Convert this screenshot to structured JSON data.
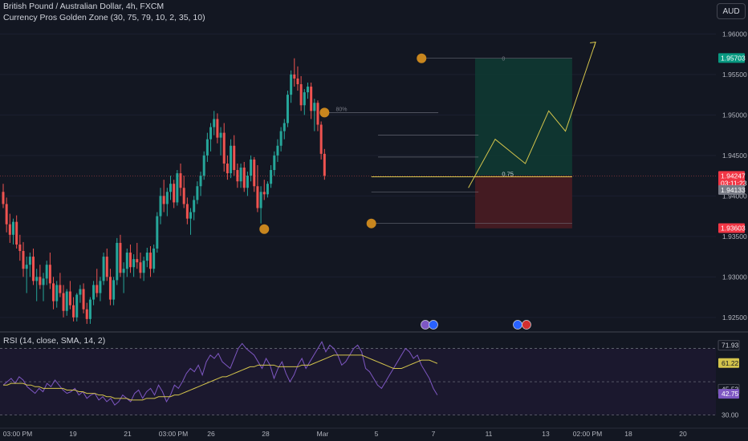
{
  "header": {
    "symbol_title": "British Pound / Australian Dollar, 4h, FXCM",
    "indicator_title": "Currency Pros Golden Zone (30, 75, 79, 10, 2, 35, 10)",
    "currency_button": "AUD"
  },
  "rsi_panel": {
    "title": "RSI (14, close, SMA, 14, 2)"
  },
  "colors": {
    "background": "#131722",
    "up_candle": "#26a69a",
    "down_candle": "#ef5350",
    "swing_marker": "#c8861e",
    "projection": "#d4c44c",
    "rsi_line": "#7e57c2",
    "rsi_sma": "#d4c44c",
    "profit_zone": "#0f3b32",
    "loss_zone": "#4a1c22"
  },
  "chart_data": [
    {
      "type": "candlestick",
      "name": "price",
      "y_axis_ticks": [
        "1.96000",
        "1.95500",
        "1.95000",
        "1.94500",
        "1.94000",
        "1.93500",
        "1.93000",
        "1.92500"
      ],
      "ylim": [
        1.9232,
        1.9642
      ],
      "x_axis_ticks": [
        "03:00 PM",
        "19",
        "21",
        "03:00 PM",
        "26",
        "28",
        "Mar",
        "5",
        "7",
        "11",
        "13",
        "02:00 PM",
        "18",
        "20"
      ],
      "price_tags": [
        {
          "label": "1.95703",
          "value": 1.95703,
          "color": "#089981"
        },
        {
          "label": "1.94247",
          "value": 1.94247,
          "color": "#f23645"
        },
        {
          "label": "03:11:23",
          "value": null,
          "color": "#f23645"
        },
        {
          "label": "1.94133",
          "value": 1.94133,
          "color": "#787b86"
        },
        {
          "label": "1.93603",
          "value": 1.93603,
          "color": "#f23645"
        }
      ],
      "candles": [
        [
          1.9405,
          1.9415,
          1.9385,
          1.939
        ],
        [
          1.939,
          1.9398,
          1.9355,
          1.9365
        ],
        [
          1.9365,
          1.9378,
          1.9342,
          1.9352
        ],
        [
          1.9352,
          1.9372,
          1.934,
          1.9368
        ],
        [
          1.9368,
          1.9376,
          1.9335,
          1.934
        ],
        [
          1.934,
          1.9352,
          1.932,
          1.9332
        ],
        [
          1.9332,
          1.9343,
          1.93,
          1.931
        ],
        [
          1.931,
          1.9325,
          1.928,
          1.9315
        ],
        [
          1.9315,
          1.933,
          1.93,
          1.9325
        ],
        [
          1.9325,
          1.9335,
          1.929,
          1.9295
        ],
        [
          1.9295,
          1.931,
          1.927,
          1.93
        ],
        [
          1.93,
          1.9315,
          1.9285,
          1.929
        ],
        [
          1.929,
          1.9305,
          1.927,
          1.9298
        ],
        [
          1.9298,
          1.932,
          1.929,
          1.9315
        ],
        [
          1.9315,
          1.933,
          1.9285,
          1.9292
        ],
        [
          1.9292,
          1.93,
          1.926,
          1.927
        ],
        [
          1.927,
          1.9295,
          1.9262,
          1.929
        ],
        [
          1.929,
          1.9305,
          1.9275,
          1.928
        ],
        [
          1.928,
          1.929,
          1.925,
          1.9258
        ],
        [
          1.9258,
          1.9285,
          1.9252,
          1.9282
        ],
        [
          1.9282,
          1.9295,
          1.926,
          1.9265
        ],
        [
          1.9265,
          1.9275,
          1.9245,
          1.925
        ],
        [
          1.925,
          1.928,
          1.9245,
          1.9278
        ],
        [
          1.9278,
          1.929,
          1.9268,
          1.9285
        ],
        [
          1.9285,
          1.9292,
          1.9255,
          1.926
        ],
        [
          1.926,
          1.9268,
          1.9242,
          1.9248
        ],
        [
          1.9248,
          1.9275,
          1.9242,
          1.9272
        ],
        [
          1.9272,
          1.9295,
          1.9265,
          1.929
        ],
        [
          1.929,
          1.931,
          1.9275,
          1.928
        ],
        [
          1.928,
          1.93,
          1.927,
          1.9295
        ],
        [
          1.9295,
          1.933,
          1.929,
          1.9325
        ],
        [
          1.9325,
          1.9335,
          1.9295,
          1.93
        ],
        [
          1.93,
          1.931,
          1.9265,
          1.9272
        ],
        [
          1.9272,
          1.93,
          1.9265,
          1.9296
        ],
        [
          1.9296,
          1.9348,
          1.929,
          1.9342
        ],
        [
          1.9342,
          1.9352,
          1.93,
          1.9305
        ],
        [
          1.9305,
          1.9318,
          1.928,
          1.931
        ],
        [
          1.931,
          1.9335,
          1.93,
          1.933
        ],
        [
          1.933,
          1.934,
          1.9305,
          1.9312
        ],
        [
          1.9312,
          1.9328,
          1.93,
          1.9322
        ],
        [
          1.9322,
          1.9342,
          1.931,
          1.9318
        ],
        [
          1.9318,
          1.933,
          1.9298,
          1.9305
        ],
        [
          1.9305,
          1.9325,
          1.9295,
          1.932
        ],
        [
          1.932,
          1.9336,
          1.9312,
          1.933
        ],
        [
          1.933,
          1.9338,
          1.93,
          1.931
        ],
        [
          1.931,
          1.934,
          1.9305,
          1.9335
        ],
        [
          1.9335,
          1.938,
          1.933,
          1.9375
        ],
        [
          1.9375,
          1.941,
          1.9365,
          1.94
        ],
        [
          1.94,
          1.942,
          1.938,
          1.939
        ],
        [
          1.939,
          1.941,
          1.9375,
          1.9405
        ],
        [
          1.9405,
          1.9425,
          1.9395,
          1.9415
        ],
        [
          1.9415,
          1.942,
          1.9385,
          1.9392
        ],
        [
          1.9392,
          1.9432,
          1.9388,
          1.9428
        ],
        [
          1.9428,
          1.944,
          1.94,
          1.941
        ],
        [
          1.941,
          1.9425,
          1.9385,
          1.939
        ],
        [
          1.939,
          1.9398,
          1.9365,
          1.9372
        ],
        [
          1.9372,
          1.9385,
          1.9352,
          1.938
        ],
        [
          1.938,
          1.94,
          1.937,
          1.9395
        ],
        [
          1.9395,
          1.9418,
          1.939,
          1.9412
        ],
        [
          1.9412,
          1.943,
          1.94,
          1.9425
        ],
        [
          1.9425,
          1.9455,
          1.942,
          1.945
        ],
        [
          1.945,
          1.9478,
          1.9442,
          1.947
        ],
        [
          1.947,
          1.949,
          1.9455,
          1.9485
        ],
        [
          1.9485,
          1.9505,
          1.9475,
          1.9495
        ],
        [
          1.9495,
          1.9502,
          1.9465,
          1.9472
        ],
        [
          1.9472,
          1.9485,
          1.945,
          1.9478
        ],
        [
          1.9478,
          1.949,
          1.943,
          1.944
        ],
        [
          1.944,
          1.945,
          1.942,
          1.9428
        ],
        [
          1.9428,
          1.947,
          1.9422,
          1.9462
        ],
        [
          1.9462,
          1.9475,
          1.9425,
          1.9432
        ],
        [
          1.9432,
          1.944,
          1.941,
          1.9418
        ],
        [
          1.9418,
          1.944,
          1.941,
          1.9435
        ],
        [
          1.9435,
          1.9442,
          1.9405,
          1.941
        ],
        [
          1.941,
          1.943,
          1.94,
          1.9425
        ],
        [
          1.9425,
          1.945,
          1.9418,
          1.9445
        ],
        [
          1.9445,
          1.9448,
          1.9405,
          1.9412
        ],
        [
          1.9412,
          1.9438,
          1.938,
          1.9385
        ],
        [
          1.9385,
          1.9412,
          1.9366,
          1.9405
        ],
        [
          1.9405,
          1.942,
          1.9395,
          1.9402
        ],
        [
          1.9402,
          1.9418,
          1.9398,
          1.9415
        ],
        [
          1.9415,
          1.9438,
          1.941,
          1.9432
        ],
        [
          1.9432,
          1.9455,
          1.9425,
          1.945
        ],
        [
          1.945,
          1.947,
          1.9442,
          1.9462
        ],
        [
          1.9462,
          1.9485,
          1.9455,
          1.948
        ],
        [
          1.948,
          1.9495,
          1.947,
          1.949
        ],
        [
          1.949,
          1.953,
          1.9485,
          1.9525
        ],
        [
          1.9525,
          1.9555,
          1.9515,
          1.955
        ],
        [
          1.955,
          1.957,
          1.9535,
          1.9545
        ],
        [
          1.9545,
          1.956,
          1.953,
          1.9538
        ],
        [
          1.9538,
          1.9548,
          1.9505,
          1.9512
        ],
        [
          1.9512,
          1.9532,
          1.95,
          1.9528
        ],
        [
          1.9528,
          1.954,
          1.952,
          1.9535
        ],
        [
          1.9535,
          1.954,
          1.9495,
          1.9505
        ],
        [
          1.9505,
          1.952,
          1.948,
          1.9515
        ],
        [
          1.9515,
          1.9518,
          1.948,
          1.9488
        ],
        [
          1.9488,
          1.9492,
          1.9445,
          1.9452
        ],
        [
          1.9452,
          1.9458,
          1.942,
          1.9425
        ]
      ],
      "annotations": {
        "swing_points": [
          {
            "index": 78,
            "price": 1.9359
          },
          {
            "index": 96,
            "price": 1.9503
          },
          {
            "index": 110,
            "price": 1.9366
          },
          {
            "index": 125,
            "price": 1.957
          }
        ],
        "level_labels": [
          "80%",
          "0",
          "0.75"
        ],
        "position": {
          "entry": 1.9425,
          "stop": 1.936,
          "target": 1.957,
          "start_index": 141,
          "end_index": 170
        },
        "fib_level_075": 1.94236,
        "current_price_line": 1.94247,
        "projection_path": [
          {
            "index": 139,
            "price": 1.941
          },
          {
            "index": 147,
            "price": 1.947
          },
          {
            "index": 156,
            "price": 1.944
          },
          {
            "index": 163,
            "price": 1.9505
          },
          {
            "index": 168,
            "price": 1.948
          },
          {
            "index": 177,
            "price": 1.959
          }
        ]
      }
    },
    {
      "type": "line",
      "name": "rsi",
      "title": "RSI (14, close, SMA, 14, 2)",
      "y_axis_ticks": [
        "71.93",
        "61.22",
        "45.53",
        "42.75",
        "30.00"
      ],
      "ylim": [
        24,
        78
      ],
      "bands": {
        "upper": 70,
        "middle": 50,
        "lower": 30
      },
      "series": [
        {
          "name": "RSI",
          "values": [
            48,
            50,
            52,
            49,
            53,
            51,
            47,
            45,
            43,
            46,
            44,
            49,
            47,
            51,
            48,
            45,
            43,
            44,
            46,
            42,
            44,
            40,
            42,
            43,
            39,
            41,
            38,
            40,
            36,
            38,
            42,
            40,
            38,
            43,
            45,
            40,
            44,
            46,
            42,
            48,
            44,
            38,
            42,
            48,
            46,
            50,
            55,
            58,
            56,
            60,
            54,
            62,
            66,
            64,
            67,
            62,
            60,
            58,
            64,
            70,
            73,
            70,
            68,
            66,
            62,
            58,
            64,
            60,
            52,
            58,
            62,
            55,
            50,
            54,
            60,
            64,
            58,
            62,
            66,
            70,
            74,
            68,
            72,
            70,
            66,
            60,
            62,
            66,
            70,
            72,
            68,
            58,
            56,
            52,
            48,
            46,
            50,
            54,
            58,
            62,
            66,
            70,
            68,
            64,
            66,
            60,
            56,
            52,
            46,
            42
          ]
        },
        {
          "name": "SMA",
          "values": [
            48,
            48,
            49,
            49,
            49,
            49,
            48,
            48,
            47,
            47,
            46,
            46,
            46,
            46,
            46,
            46,
            45,
            45,
            45,
            44,
            44,
            43,
            43,
            43,
            42,
            42,
            41,
            41,
            40,
            40,
            40,
            40,
            39,
            39,
            39,
            39,
            40,
            40,
            40,
            41,
            41,
            41,
            41,
            42,
            42,
            43,
            44,
            45,
            46,
            47,
            48,
            49,
            50,
            51,
            52,
            53,
            53,
            54,
            55,
            56,
            57,
            58,
            59,
            59,
            60,
            60,
            60,
            60,
            60,
            59,
            59,
            59,
            59,
            59,
            59,
            60,
            60,
            60,
            61,
            62,
            63,
            64,
            65,
            66,
            66,
            66,
            66,
            66,
            66,
            66,
            66,
            65,
            64,
            63,
            62,
            61,
            60,
            59,
            58,
            58,
            58,
            59,
            60,
            61,
            62,
            63,
            63,
            63,
            62,
            61
          ]
        }
      ]
    }
  ]
}
